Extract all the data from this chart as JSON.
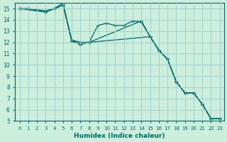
{
  "xlabel": "Humidex (Indice chaleur)",
  "bg_color": "#cceedd",
  "line_color": "#006666",
  "grid_color": "#99cccc",
  "xlim": [
    -0.5,
    23.5
  ],
  "ylim": [
    5,
    15.5
  ],
  "yticks": [
    5,
    6,
    7,
    8,
    9,
    10,
    11,
    12,
    13,
    14,
    15
  ],
  "xticks": [
    0,
    1,
    2,
    3,
    4,
    5,
    6,
    7,
    8,
    9,
    10,
    11,
    12,
    13,
    14,
    15,
    16,
    17,
    18,
    19,
    20,
    21,
    22,
    23
  ],
  "series": [
    {
      "x": [
        0,
        1,
        3,
        4,
        5,
        6,
        7,
        8,
        9,
        10,
        11,
        12,
        13,
        14,
        15,
        16,
        17,
        18,
        19,
        20,
        21,
        22,
        23
      ],
      "y": [
        15,
        15,
        14.8,
        15,
        15.5,
        12.1,
        11.8,
        12.0,
        13.5,
        13.7,
        13.5,
        13.5,
        13.9,
        13.8,
        12.5,
        11.3,
        10.5,
        8.5,
        7.5,
        7.5,
        6.5,
        5.2,
        5.2
      ]
    },
    {
      "x": [
        0,
        3,
        5,
        6,
        7,
        8,
        14,
        15,
        16,
        17,
        18,
        19,
        20,
        21,
        22,
        23
      ],
      "y": [
        15,
        14.7,
        15.3,
        12.2,
        12.0,
        12.0,
        13.9,
        12.5,
        11.3,
        10.5,
        8.5,
        7.5,
        7.5,
        6.5,
        5.2,
        5.2
      ]
    },
    {
      "x": [
        0,
        3,
        4,
        5,
        6,
        7,
        8,
        15,
        16,
        17,
        18,
        19,
        20,
        21,
        22,
        23
      ],
      "y": [
        15,
        14.7,
        15,
        15.3,
        12.1,
        12.0,
        12.0,
        12.5,
        11.3,
        10.5,
        8.5,
        7.5,
        7.5,
        6.5,
        5.2,
        5.2
      ]
    }
  ]
}
